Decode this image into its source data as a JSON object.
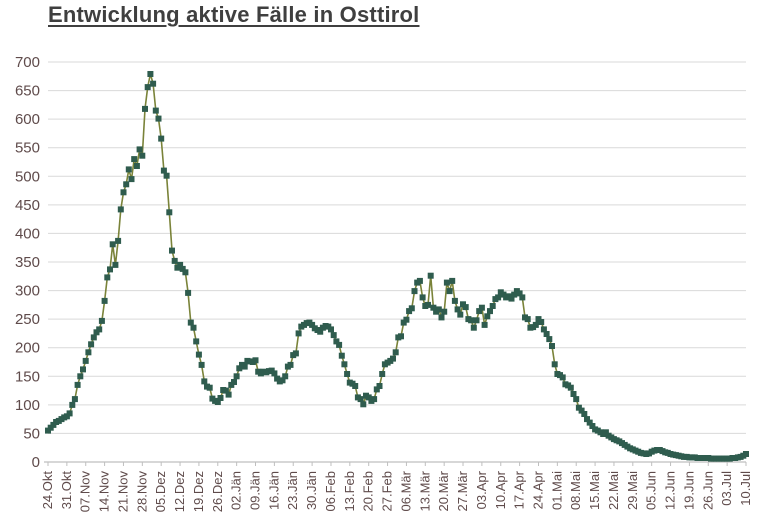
{
  "title": "Entwicklung aktive Fälle in Osttirol",
  "chart_data": {
    "type": "line",
    "title": "Entwicklung aktive Fälle in Osttirol",
    "xlabel": "",
    "ylabel": "",
    "ylim": [
      0,
      700
    ],
    "y_ticks": [
      0,
      50,
      100,
      150,
      200,
      250,
      300,
      350,
      400,
      450,
      500,
      550,
      600,
      650,
      700
    ],
    "grid": "horizontal",
    "legend": "none",
    "marker": "square",
    "tick_interval_days": 7,
    "x_tick_labels": [
      "24.Okt",
      "31.Okt",
      "07.Nov",
      "14.Nov",
      "21.Nov",
      "28.Nov",
      "05.Dez",
      "12.Dez",
      "19.Dez",
      "26.Dez",
      "02.Jän",
      "09.Jän",
      "16.Jän",
      "23.Jän",
      "30.Jän",
      "06.Feb",
      "13.Feb",
      "20.Feb",
      "27.Feb",
      "06.Mär",
      "13.Mär",
      "20.Mär",
      "27.Mär",
      "03.Apr",
      "10.Apr",
      "17.Apr",
      "24.Apr",
      "01.Mai",
      "08.Mai",
      "15.Mai",
      "22.Mai",
      "29.Mai",
      "05.Jun",
      "12.Jun",
      "19.Jun",
      "26.Jun",
      "03.Jul",
      "10.Jul"
    ],
    "values": [
      55,
      60,
      65,
      70,
      72,
      75,
      78,
      80,
      85,
      100,
      110,
      135,
      150,
      162,
      177,
      192,
      206,
      218,
      227,
      232,
      247,
      282,
      323,
      337,
      381,
      345,
      387,
      442,
      472,
      486,
      512,
      495,
      530,
      518,
      547,
      536,
      618,
      656,
      679,
      662,
      615,
      601,
      566,
      510,
      501,
      437,
      370,
      352,
      340,
      345,
      338,
      332,
      296,
      244,
      235,
      211,
      188,
      170,
      141,
      132,
      130,
      111,
      107,
      105,
      112,
      126,
      125,
      118,
      135,
      140,
      150,
      164,
      170,
      167,
      177,
      176,
      175,
      178,
      158,
      155,
      158,
      157,
      159,
      160,
      155,
      146,
      141,
      143,
      150,
      167,
      170,
      187,
      190,
      225,
      237,
      240,
      243,
      244,
      240,
      234,
      231,
      228,
      235,
      238,
      237,
      232,
      222,
      211,
      205,
      186,
      171,
      154,
      139,
      137,
      133,
      113,
      110,
      101,
      116,
      113,
      107,
      110,
      127,
      133,
      154,
      171,
      174,
      177,
      181,
      192,
      218,
      220,
      244,
      249,
      264,
      269,
      299,
      314,
      317,
      288,
      273,
      275,
      326,
      270,
      263,
      267,
      253,
      263,
      314,
      299,
      317,
      282,
      267,
      258,
      276,
      271,
      250,
      248,
      235,
      248,
      264,
      270,
      240,
      255,
      264,
      273,
      285,
      288,
      297,
      293,
      288,
      290,
      286,
      293,
      299,
      295,
      288,
      253,
      250,
      235,
      236,
      240,
      250,
      245,
      232,
      224,
      215,
      203,
      171,
      154,
      152,
      148,
      136,
      134,
      130,
      119,
      110,
      95,
      90,
      84,
      75,
      69,
      63,
      57,
      55,
      52,
      49,
      52,
      46,
      43,
      40,
      38,
      36,
      33,
      30,
      27,
      24,
      22,
      20,
      18,
      16,
      15,
      14,
      15,
      18,
      20,
      21,
      21,
      19,
      17,
      16,
      14,
      13,
      12,
      11,
      10,
      9,
      9,
      8,
      8,
      8,
      7,
      7,
      7,
      7,
      7,
      6,
      6,
      6,
      6,
      6,
      6,
      6,
      6,
      7,
      7,
      8,
      9,
      11,
      14
    ],
    "colors": {
      "line": "#7a8339",
      "marker": "#2f5c4e",
      "grid": "#d9d9d9",
      "axis_line": "#bfbfbf",
      "axis_text": "#5f4b4b",
      "title": "#3f3f3f"
    }
  }
}
